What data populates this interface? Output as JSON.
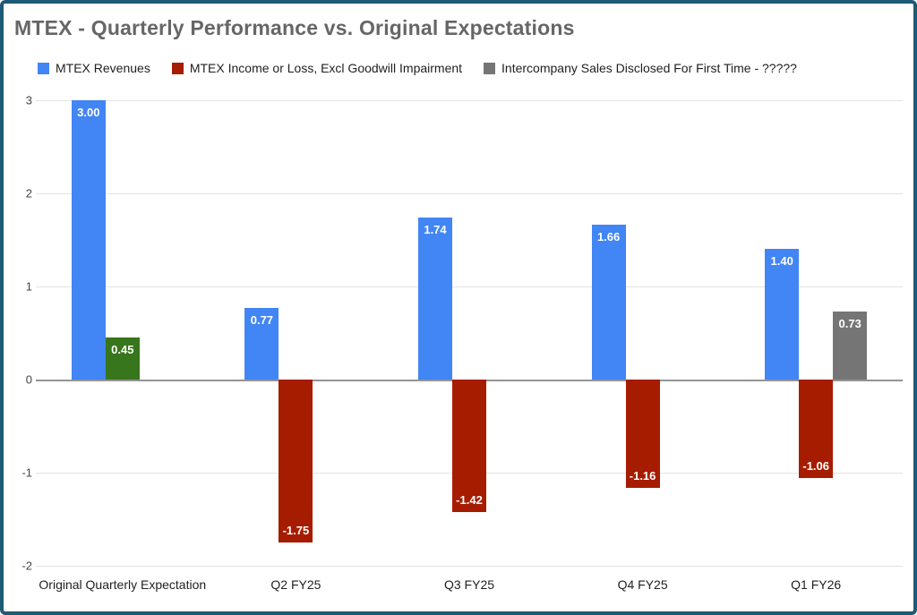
{
  "title": "MTEX - Quarterly Performance vs. Original Expectations",
  "colors": {
    "revenues": "#4285f4",
    "income_loss": "#a61c00",
    "expectation_income": "#38761d",
    "intercompany": "#757575",
    "frame_border": "#1e5a74",
    "grid": "#e3e3e3",
    "zero_line": "#949494",
    "title_text": "#666666"
  },
  "legend": [
    {
      "label": "MTEX Revenues",
      "color": "#4285f4"
    },
    {
      "label": "MTEX Income or Loss, Excl Goodwill Impairment",
      "color": "#a61c00"
    },
    {
      "label": "Intercompany Sales Disclosed For First Time - ?????",
      "color": "#757575"
    }
  ],
  "chart_data": {
    "type": "bar",
    "title": "MTEX - Quarterly Performance vs. Original Expectations",
    "categories": [
      "Original Quarterly Expectation",
      "Q2 FY25",
      "Q3 FY25",
      "Q4 FY25",
      "Q1 FY26"
    ],
    "series": [
      {
        "name": "MTEX Revenues",
        "color": "#4285f4",
        "values": [
          3.0,
          0.77,
          1.74,
          1.66,
          1.4
        ]
      },
      {
        "name": "MTEX Income or Loss, Excl Goodwill Impairment",
        "color": "#a61c00",
        "point_colors": [
          "#38761d",
          null,
          null,
          null,
          null
        ],
        "values": [
          0.45,
          -1.75,
          -1.42,
          -1.16,
          -1.06
        ]
      },
      {
        "name": "Intercompany Sales Disclosed For First Time - ?????",
        "color": "#757575",
        "values": [
          null,
          null,
          null,
          null,
          0.73
        ]
      }
    ],
    "bar_labels": {
      "MTEX Revenues": [
        "3.00",
        "0.77",
        "1.74",
        "1.66",
        "1.40"
      ],
      "MTEX Income or Loss, Excl Goodwill Impairment": [
        "0.45",
        "-1.75",
        "-1.42",
        "-1.16",
        "-1.06"
      ],
      "Intercompany Sales Disclosed For First Time - ?????": [
        null,
        null,
        null,
        null,
        "0.73"
      ]
    },
    "xlabel": "",
    "ylabel": "",
    "ylim": [
      -2,
      3
    ],
    "yticks": [
      3,
      2,
      1,
      0,
      -1,
      -2
    ],
    "grid": true,
    "legend_position": "top"
  }
}
